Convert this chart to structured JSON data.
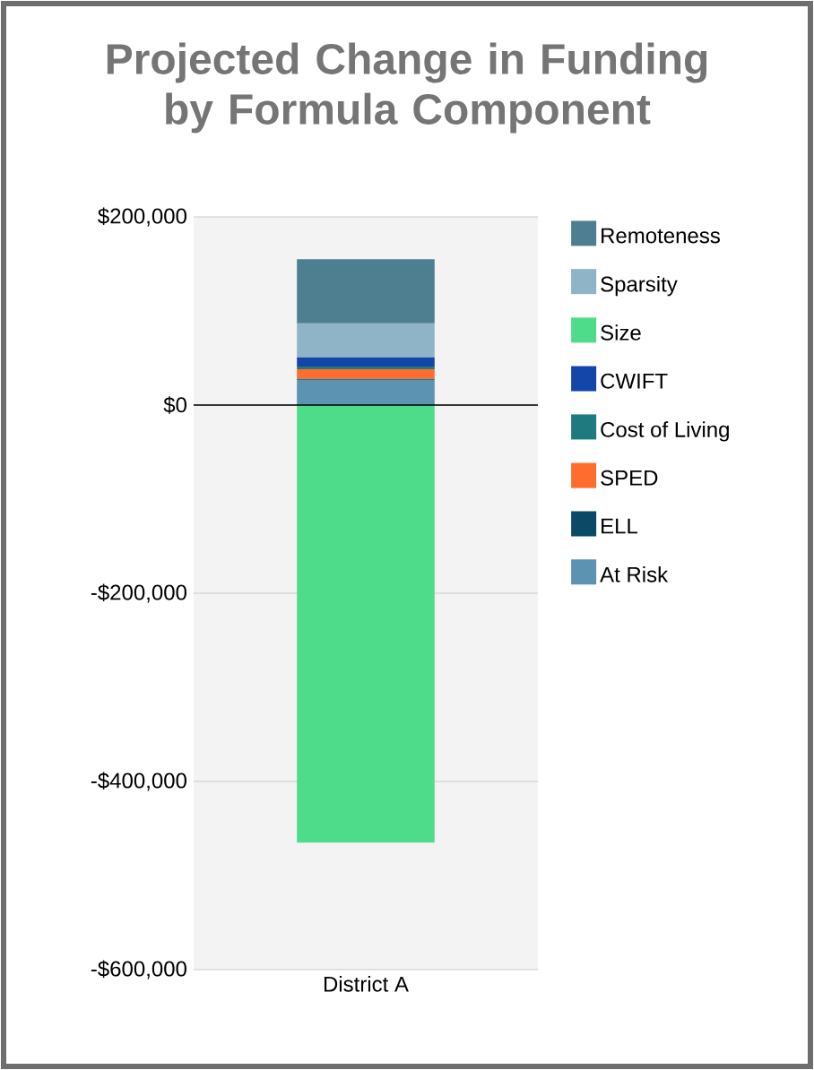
{
  "chart_data": {
    "type": "bar",
    "stacked": true,
    "title": "Projected Change in Funding by Formula Component",
    "categories": [
      "District A"
    ],
    "series": [
      {
        "name": "At Risk",
        "color": "#5b93b0",
        "values": [
          27000
        ]
      },
      {
        "name": "ELL",
        "color": "#0a4a66",
        "values": [
          1000
        ]
      },
      {
        "name": "SPED",
        "color": "#ff6d2e",
        "values": [
          10000
        ]
      },
      {
        "name": "Cost of Living",
        "color": "#1f7a80",
        "values": [
          3000
        ]
      },
      {
        "name": "CWIFT",
        "color": "#1445a8",
        "values": [
          10000
        ]
      },
      {
        "name": "Size",
        "color": "#4fdc8a",
        "values": [
          -465000
        ]
      },
      {
        "name": "Sparsity",
        "color": "#8fb4c8",
        "values": [
          36000
        ]
      },
      {
        "name": "Remoteness",
        "color": "#4e7f91",
        "values": [
          68000
        ]
      }
    ],
    "ylim": [
      -600000,
      200000
    ],
    "yticks": [
      {
        "value": -600000,
        "label": "-$600,000"
      },
      {
        "value": -400000,
        "label": "-$400,000"
      },
      {
        "value": -200000,
        "label": "-$200,000"
      },
      {
        "value": 0,
        "label": "$0"
      },
      {
        "value": 200000,
        "label": "$200,000"
      }
    ],
    "grid": "y",
    "legend": "right",
    "ref_lines": [
      {
        "axis": "y",
        "value": 0,
        "color": "#000000"
      }
    ]
  }
}
